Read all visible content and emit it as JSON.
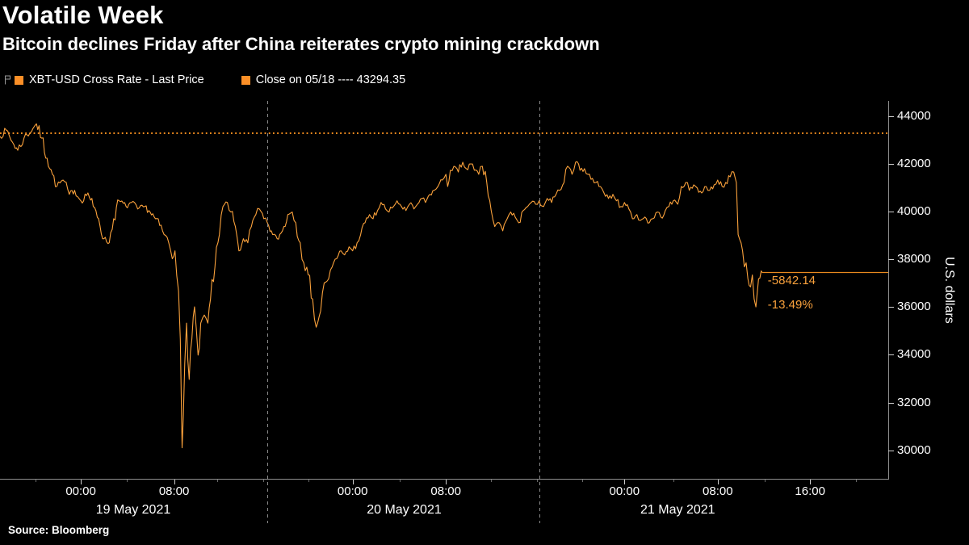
{
  "header": {
    "title": "Volatile Week",
    "subtitle": "Bitcoin declines Friday after China reiterates crypto mining crackdown"
  },
  "legend": {
    "items": [
      {
        "label": "XBT-USD Cross Rate - Last Price",
        "swatch": "#FB8F27"
      },
      {
        "label": "Close on 05/18 ---- 43294.35",
        "swatch": "#FB8F27"
      }
    ]
  },
  "footer": {
    "source": "Source: Bloomberg"
  },
  "chart_data": {
    "type": "line",
    "title": "Volatile Week",
    "subtitle": "Bitcoin declines Friday after China reiterates crypto mining crackdown",
    "xlabel": "",
    "ylabel": "U.S. dollars",
    "ylim": [
      28800,
      44650
    ],
    "y_ticks": [
      44000,
      42000,
      40000,
      38000,
      36000,
      34000,
      32000,
      30000
    ],
    "grid": false,
    "legend_position": "top",
    "x_ticks": [
      {
        "pos": 0.091,
        "label": "00:00"
      },
      {
        "pos": 0.196,
        "label": "08:00"
      },
      {
        "pos": 0.397,
        "label": "00:00"
      },
      {
        "pos": 0.502,
        "label": "08:00"
      },
      {
        "pos": 0.703,
        "label": "00:00"
      },
      {
        "pos": 0.808,
        "label": "08:00"
      },
      {
        "pos": 0.912,
        "label": "16:00"
      }
    ],
    "day_labels": [
      {
        "pos": 0.15,
        "label": "19 May 2021"
      },
      {
        "pos": 0.455,
        "label": "20 May 2021"
      },
      {
        "pos": 0.763,
        "label": "21 May 2021"
      }
    ],
    "separators": [
      0.301,
      0.607
    ],
    "reference_line": {
      "label": "Close on 05/18",
      "value": 43294.35,
      "color": "#F98E1F",
      "style": "dotted"
    },
    "last_point": {
      "price": 37452.21,
      "pos": 0.858,
      "change": "-5842.14",
      "change_pct": "-13.49%",
      "line_color": "#E8891E"
    },
    "annotation_color": "#F9A13C",
    "series": [
      {
        "name": "XBT-USD Cross Rate - Last Price",
        "color": "#FBA23C",
        "points": [
          [
            0,
            43160
          ],
          [
            0.007,
            43430
          ],
          [
            0.014,
            42920
          ],
          [
            0.02,
            42580
          ],
          [
            0.027,
            43090
          ],
          [
            0.037,
            43490
          ],
          [
            0.041,
            43690
          ],
          [
            0.047,
            43090
          ],
          [
            0.053,
            42250
          ],
          [
            0.059,
            41570
          ],
          [
            0.064,
            41060
          ],
          [
            0.071,
            41330
          ],
          [
            0.078,
            40730
          ],
          [
            0.084,
            40900
          ],
          [
            0.091,
            40460
          ],
          [
            0.099,
            40790
          ],
          [
            0.105,
            40220
          ],
          [
            0.111,
            39710
          ],
          [
            0.117,
            38870
          ],
          [
            0.123,
            38700
          ],
          [
            0.128,
            39710
          ],
          [
            0.134,
            40460
          ],
          [
            0.142,
            40220
          ],
          [
            0.148,
            40390
          ],
          [
            0.155,
            40120
          ],
          [
            0.163,
            40220
          ],
          [
            0.169,
            39990
          ],
          [
            0.175,
            39710
          ],
          [
            0.183,
            39200
          ],
          [
            0.19,
            38700
          ],
          [
            0.194,
            38030
          ],
          [
            0.197,
            38360
          ],
          [
            0.201,
            36680
          ],
          [
            0.203,
            34660
          ],
          [
            0.205,
            30100
          ],
          [
            0.208,
            33640
          ],
          [
            0.21,
            35330
          ],
          [
            0.213,
            32970
          ],
          [
            0.216,
            34660
          ],
          [
            0.219,
            36010
          ],
          [
            0.223,
            33990
          ],
          [
            0.226,
            35330
          ],
          [
            0.23,
            35670
          ],
          [
            0.234,
            35330
          ],
          [
            0.237,
            36340
          ],
          [
            0.242,
            37690
          ],
          [
            0.247,
            39040
          ],
          [
            0.251,
            40220
          ],
          [
            0.256,
            40390
          ],
          [
            0.26,
            39990
          ],
          [
            0.265,
            39380
          ],
          [
            0.269,
            38360
          ],
          [
            0.274,
            38870
          ],
          [
            0.279,
            38700
          ],
          [
            0.283,
            39380
          ],
          [
            0.288,
            39880
          ],
          [
            0.292,
            40120
          ],
          [
            0.297,
            39710
          ],
          [
            0.301,
            39540
          ],
          [
            0.307,
            39040
          ],
          [
            0.312,
            38870
          ],
          [
            0.318,
            39200
          ],
          [
            0.324,
            39880
          ],
          [
            0.329,
            39990
          ],
          [
            0.333,
            39540
          ],
          [
            0.338,
            38700
          ],
          [
            0.342,
            37860
          ],
          [
            0.347,
            37350
          ],
          [
            0.352,
            36340
          ],
          [
            0.356,
            35160
          ],
          [
            0.361,
            35840
          ],
          [
            0.365,
            37020
          ],
          [
            0.37,
            37190
          ],
          [
            0.374,
            37690
          ],
          [
            0.379,
            38030
          ],
          [
            0.384,
            38360
          ],
          [
            0.388,
            38190
          ],
          [
            0.393,
            38530
          ],
          [
            0.397,
            38360
          ],
          [
            0.402,
            38700
          ],
          [
            0.406,
            39040
          ],
          [
            0.411,
            39540
          ],
          [
            0.416,
            39880
          ],
          [
            0.42,
            39710
          ],
          [
            0.425,
            40050
          ],
          [
            0.429,
            40390
          ],
          [
            0.434,
            40120
          ],
          [
            0.438,
            39990
          ],
          [
            0.443,
            40220
          ],
          [
            0.447,
            40460
          ],
          [
            0.452,
            40220
          ],
          [
            0.457,
            40050
          ],
          [
            0.461,
            40320
          ],
          [
            0.466,
            40120
          ],
          [
            0.47,
            40320
          ],
          [
            0.475,
            40560
          ],
          [
            0.479,
            40390
          ],
          [
            0.484,
            40730
          ],
          [
            0.489,
            40900
          ],
          [
            0.493,
            41060
          ],
          [
            0.498,
            41330
          ],
          [
            0.502,
            41570
          ],
          [
            0.504,
            41060
          ],
          [
            0.507,
            41740
          ],
          [
            0.511,
            41910
          ],
          [
            0.516,
            41670
          ],
          [
            0.521,
            42080
          ],
          [
            0.525,
            41810
          ],
          [
            0.53,
            42010
          ],
          [
            0.534,
            41740
          ],
          [
            0.539,
            41570
          ],
          [
            0.543,
            41910
          ],
          [
            0.548,
            41230
          ],
          [
            0.553,
            40050
          ],
          [
            0.557,
            39380
          ],
          [
            0.562,
            39540
          ],
          [
            0.566,
            39200
          ],
          [
            0.571,
            39710
          ],
          [
            0.575,
            39990
          ],
          [
            0.58,
            39780
          ],
          [
            0.584,
            39540
          ],
          [
            0.589,
            40050
          ],
          [
            0.594,
            40220
          ],
          [
            0.598,
            40390
          ],
          [
            0.603,
            40320
          ],
          [
            0.607,
            40460
          ],
          [
            0.612,
            40220
          ],
          [
            0.616,
            40560
          ],
          [
            0.621,
            40390
          ],
          [
            0.626,
            40730
          ],
          [
            0.63,
            40900
          ],
          [
            0.635,
            41230
          ],
          [
            0.639,
            41910
          ],
          [
            0.644,
            41570
          ],
          [
            0.648,
            42080
          ],
          [
            0.653,
            41740
          ],
          [
            0.658,
            41810
          ],
          [
            0.662,
            41570
          ],
          [
            0.667,
            41400
          ],
          [
            0.671,
            41230
          ],
          [
            0.676,
            41060
          ],
          [
            0.68,
            40790
          ],
          [
            0.685,
            40560
          ],
          [
            0.69,
            40730
          ],
          [
            0.694,
            40460
          ],
          [
            0.699,
            40220
          ],
          [
            0.703,
            40390
          ],
          [
            0.708,
            40120
          ],
          [
            0.712,
            39710
          ],
          [
            0.717,
            39880
          ],
          [
            0.721,
            39640
          ],
          [
            0.726,
            39780
          ],
          [
            0.731,
            39540
          ],
          [
            0.735,
            39710
          ],
          [
            0.74,
            39990
          ],
          [
            0.744,
            39780
          ],
          [
            0.749,
            40050
          ],
          [
            0.753,
            40220
          ],
          [
            0.758,
            40460
          ],
          [
            0.763,
            40320
          ],
          [
            0.767,
            41060
          ],
          [
            0.772,
            41230
          ],
          [
            0.776,
            40900
          ],
          [
            0.781,
            41130
          ],
          [
            0.785,
            41000
          ],
          [
            0.79,
            40790
          ],
          [
            0.795,
            41060
          ],
          [
            0.799,
            40900
          ],
          [
            0.804,
            41130
          ],
          [
            0.808,
            41330
          ],
          [
            0.813,
            41060
          ],
          [
            0.817,
            41230
          ],
          [
            0.822,
            41470
          ],
          [
            0.826,
            41670
          ],
          [
            0.829,
            41230
          ],
          [
            0.831,
            39040
          ],
          [
            0.836,
            38360
          ],
          [
            0.838,
            37690
          ],
          [
            0.84,
            37860
          ],
          [
            0.842,
            37190
          ],
          [
            0.845,
            36850
          ],
          [
            0.847,
            37350
          ],
          [
            0.849,
            36340
          ],
          [
            0.851,
            36010
          ],
          [
            0.854,
            37190
          ],
          [
            0.857,
            37520
          ],
          [
            0.858,
            37452.21
          ]
        ]
      }
    ]
  }
}
